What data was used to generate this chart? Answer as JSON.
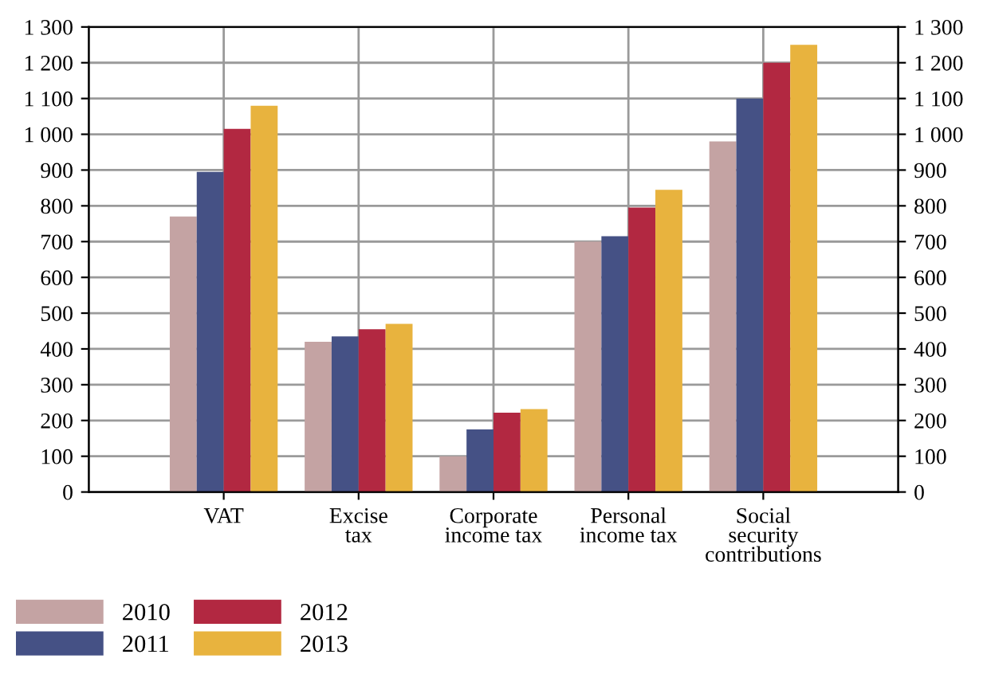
{
  "chart_data": {
    "type": "bar",
    "categories": [
      "VAT",
      "Excise\ntax",
      "Corporate\nincome tax",
      "Personal\nincome tax",
      "Social\nsecurity\ncontributions"
    ],
    "series": [
      {
        "name": "2010",
        "color": "#c4a3a3",
        "values": [
          770,
          420,
          100,
          700,
          980
        ]
      },
      {
        "name": "2011",
        "color": "#455185",
        "values": [
          895,
          435,
          175,
          715,
          1100
        ]
      },
      {
        "name": "2012",
        "color": "#b22841",
        "values": [
          1015,
          455,
          222,
          795,
          1200
        ]
      },
      {
        "name": "2013",
        "color": "#e8b33e",
        "values": [
          1080,
          470,
          232,
          845,
          1250
        ]
      }
    ],
    "ylim": [
      0,
      1300
    ],
    "yticks": [
      0,
      100,
      200,
      300,
      400,
      500,
      600,
      700,
      800,
      900,
      {
        "value": 1000,
        "label": "1 000"
      },
      {
        "value": 1100,
        "label": "1 100"
      },
      {
        "value": 1200,
        "label": "1 200"
      },
      {
        "value": 1300,
        "label": "1 300"
      }
    ],
    "y2lim": [
      0,
      1300
    ],
    "y2ticks": [
      0,
      100,
      200,
      300,
      400,
      500,
      600,
      700,
      800,
      900,
      {
        "value": 1000,
        "label": "1 000"
      },
      {
        "value": 1100,
        "label": "1 100"
      },
      {
        "value": 1200,
        "label": "1 200"
      },
      {
        "value": 1300,
        "label": "1 300"
      }
    ],
    "grid": true,
    "legend": "bottom left"
  }
}
